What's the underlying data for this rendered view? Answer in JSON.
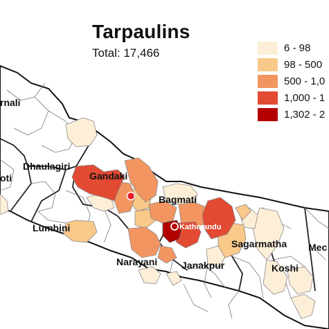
{
  "title": "Tarpaulins",
  "subtitle": "Total: 17,466",
  "legend": [
    {
      "label": "6 - 98",
      "color": "#fdeed8"
    },
    {
      "label": "98 - 500",
      "color": "#f9c98a"
    },
    {
      "label": "500 - 1,0",
      "color": "#f39560"
    },
    {
      "label": "1,000 - 1",
      "color": "#e24a32"
    },
    {
      "label": "1,302 - 2",
      "color": "#b30000"
    }
  ],
  "regions": {
    "karnali": "rnali",
    "dhaulagiri": "Dhaulagiri",
    "seti": "oti",
    "gandaki": "Gandaki",
    "lumbini": "Lumbini",
    "bagmati": "Bagmati",
    "kathmandu": "Kathmandu",
    "narayani": "Narayani",
    "janakpur": "Janakpur",
    "sagarmatha": "Sagarmatha",
    "koshi": "Koshi",
    "mechi": "Mec"
  },
  "colors": {
    "border": "#555555",
    "outline": "#111111",
    "empty": "#ffffff",
    "marker": "#e8202a"
  }
}
